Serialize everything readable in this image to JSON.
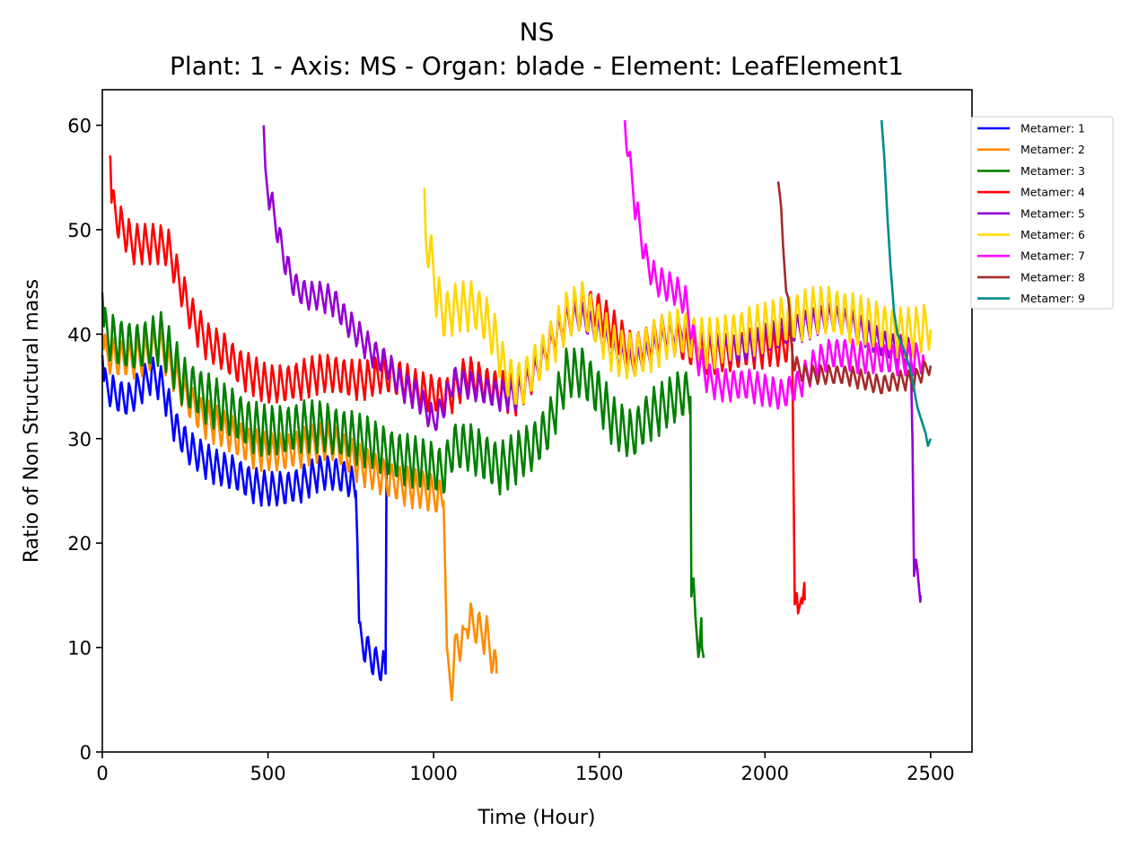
{
  "chart_data": {
    "type": "line",
    "title": "NS",
    "subtitle": "Plant: 1 - Axis: MS - Organ: blade - Element: LeafElement1",
    "xlabel": "Time (Hour)",
    "ylabel": "Ratio of Non Structural mass",
    "xlim": [
      0,
      2625
    ],
    "ylim": [
      0,
      63.4
    ],
    "xticks": [
      0,
      500,
      1000,
      1500,
      2000,
      2500
    ],
    "yticks": [
      0,
      10,
      20,
      30,
      40,
      50,
      60
    ],
    "grid": false,
    "legend_position": "outside-right-top",
    "series": [
      {
        "name": "Metamer: 1",
        "color": "#0000ff",
        "amp": 1.8,
        "points": [
          [
            0,
            38
          ],
          [
            5,
            35
          ],
          [
            40,
            34
          ],
          [
            80,
            33.5
          ],
          [
            120,
            35
          ],
          [
            150,
            36
          ],
          [
            180,
            35
          ],
          [
            220,
            31
          ],
          [
            260,
            29
          ],
          [
            300,
            28
          ],
          [
            350,
            27
          ],
          [
            400,
            26.5
          ],
          [
            450,
            25.5
          ],
          [
            500,
            25
          ],
          [
            550,
            25
          ],
          [
            600,
            25.5
          ],
          [
            650,
            26.5
          ],
          [
            700,
            26.5
          ],
          [
            740,
            26
          ],
          [
            765,
            25
          ],
          [
            770,
            20
          ],
          [
            775,
            11
          ],
          [
            790,
            10
          ],
          [
            820,
            8.5
          ],
          [
            845,
            8
          ],
          [
            855,
            7.5
          ],
          [
            858,
            28
          ]
        ]
      },
      {
        "name": "Metamer: 2",
        "color": "#ff8c00",
        "amp": 2,
        "points": [
          [
            0,
            40
          ],
          [
            5,
            38
          ],
          [
            40,
            37.5
          ],
          [
            90,
            37.5
          ],
          [
            140,
            38
          ],
          [
            170,
            39
          ],
          [
            200,
            37
          ],
          [
            250,
            34
          ],
          [
            300,
            32
          ],
          [
            350,
            31
          ],
          [
            400,
            30
          ],
          [
            450,
            29
          ],
          [
            500,
            28.5
          ],
          [
            550,
            28.5
          ],
          [
            600,
            29
          ],
          [
            650,
            29.5
          ],
          [
            700,
            29.5
          ],
          [
            750,
            28
          ],
          [
            800,
            27
          ],
          [
            850,
            26
          ],
          [
            900,
            25.5
          ],
          [
            950,
            25
          ],
          [
            1000,
            24.5
          ],
          [
            1030,
            24
          ],
          [
            1035,
            17
          ],
          [
            1040,
            8
          ],
          [
            1055,
            6.5
          ],
          [
            1070,
            10.5
          ],
          [
            1090,
            10
          ],
          [
            1100,
            12.5
          ],
          [
            1120,
            12
          ],
          [
            1140,
            11.5
          ],
          [
            1160,
            11
          ],
          [
            1180,
            8.5
          ],
          [
            1190,
            7.5
          ]
        ]
      },
      {
        "name": "Metamer: 3",
        "color": "#008000",
        "amp": 2.6,
        "points": [
          [
            0,
            44
          ],
          [
            5,
            40
          ],
          [
            40,
            39
          ],
          [
            100,
            38.5
          ],
          [
            150,
            39
          ],
          [
            180,
            39.5
          ],
          [
            210,
            37.5
          ],
          [
            250,
            35
          ],
          [
            300,
            34
          ],
          [
            350,
            33
          ],
          [
            400,
            32
          ],
          [
            450,
            31
          ],
          [
            500,
            30.5
          ],
          [
            550,
            30.5
          ],
          [
            600,
            31
          ],
          [
            650,
            31
          ],
          [
            700,
            30.5
          ],
          [
            750,
            30
          ],
          [
            800,
            29.5
          ],
          [
            850,
            28.5
          ],
          [
            900,
            28
          ],
          [
            950,
            27.5
          ],
          [
            1000,
            27
          ],
          [
            1030,
            26.5
          ],
          [
            1060,
            29
          ],
          [
            1100,
            29
          ],
          [
            1150,
            28
          ],
          [
            1200,
            27
          ],
          [
            1250,
            28
          ],
          [
            1300,
            29
          ],
          [
            1350,
            31
          ],
          [
            1400,
            36
          ],
          [
            1450,
            36
          ],
          [
            1500,
            34
          ],
          [
            1550,
            31
          ],
          [
            1600,
            30
          ],
          [
            1650,
            32
          ],
          [
            1700,
            33
          ],
          [
            1750,
            34
          ],
          [
            1775,
            34
          ],
          [
            1778,
            16
          ],
          [
            1790,
            12
          ],
          [
            1810,
            10
          ],
          [
            1815,
            9
          ]
        ]
      },
      {
        "name": "Metamer: 4",
        "color": "#ff0000",
        "amp": 2,
        "points": [
          [
            20,
            57
          ],
          [
            24,
            57
          ],
          [
            28,
            52.5
          ],
          [
            50,
            50.5
          ],
          [
            90,
            48.5
          ],
          [
            120,
            48.5
          ],
          [
            170,
            48.5
          ],
          [
            200,
            48
          ],
          [
            230,
            45
          ],
          [
            270,
            41.5
          ],
          [
            320,
            39
          ],
          [
            370,
            38
          ],
          [
            420,
            36.5
          ],
          [
            450,
            36
          ],
          [
            500,
            35
          ],
          [
            550,
            35
          ],
          [
            600,
            35.5
          ],
          [
            650,
            36
          ],
          [
            700,
            36
          ],
          [
            750,
            35.5
          ],
          [
            800,
            35.5
          ],
          [
            850,
            36
          ],
          [
            900,
            35.5
          ],
          [
            950,
            34.5
          ],
          [
            1000,
            34
          ],
          [
            1050,
            34
          ],
          [
            1100,
            36
          ],
          [
            1150,
            35
          ],
          [
            1200,
            34.5
          ],
          [
            1250,
            34
          ],
          [
            1300,
            36
          ],
          [
            1350,
            39
          ],
          [
            1400,
            41
          ],
          [
            1450,
            42.5
          ],
          [
            1500,
            42
          ],
          [
            1550,
            40
          ],
          [
            1600,
            38
          ],
          [
            1650,
            39
          ],
          [
            1700,
            40
          ],
          [
            1750,
            39
          ],
          [
            1800,
            38
          ],
          [
            1850,
            38
          ],
          [
            1900,
            38
          ],
          [
            1950,
            38.5
          ],
          [
            2000,
            38.5
          ],
          [
            2050,
            38.5
          ],
          [
            2082,
            39
          ],
          [
            2085,
            30
          ],
          [
            2090,
            15
          ],
          [
            2100,
            12
          ],
          [
            2110,
            16
          ],
          [
            2120,
            14.5
          ]
        ]
      },
      {
        "name": "Metamer: 5",
        "color": "#9400d3",
        "amp": 1.5,
        "points": [
          [
            487,
            60
          ],
          [
            492,
            55
          ],
          [
            520,
            51
          ],
          [
            550,
            47
          ],
          [
            580,
            44.5
          ],
          [
            620,
            43.5
          ],
          [
            660,
            43.5
          ],
          [
            700,
            43
          ],
          [
            740,
            41
          ],
          [
            780,
            39.5
          ],
          [
            820,
            38
          ],
          [
            860,
            37
          ],
          [
            900,
            35
          ],
          [
            950,
            34
          ],
          [
            1000,
            31.5
          ],
          [
            1030,
            33
          ],
          [
            1060,
            35.5
          ],
          [
            1100,
            35
          ],
          [
            1150,
            34.5
          ],
          [
            1200,
            34
          ],
          [
            1250,
            34
          ],
          [
            1300,
            36
          ],
          [
            1350,
            38.5
          ],
          [
            1400,
            41.5
          ],
          [
            1450,
            41.5
          ],
          [
            1500,
            40
          ],
          [
            1550,
            38
          ],
          [
            1600,
            37
          ],
          [
            1650,
            38
          ],
          [
            1700,
            39.5
          ],
          [
            1750,
            40.5
          ],
          [
            1800,
            39
          ],
          [
            1850,
            38.5
          ],
          [
            1900,
            38.5
          ],
          [
            1950,
            38.5
          ],
          [
            2000,
            39.5
          ],
          [
            2050,
            40
          ],
          [
            2100,
            40.5
          ],
          [
            2150,
            41
          ],
          [
            2200,
            41.5
          ],
          [
            2250,
            41
          ],
          [
            2300,
            40
          ],
          [
            2350,
            39
          ],
          [
            2400,
            38.5
          ],
          [
            2440,
            38
          ],
          [
            2445,
            30
          ],
          [
            2450,
            17.5
          ],
          [
            2460,
            16.5
          ],
          [
            2470,
            15
          ]
        ]
      },
      {
        "name": "Metamer: 6",
        "color": "#ffd700",
        "amp": 2.5,
        "points": [
          [
            972,
            54
          ],
          [
            976,
            49
          ],
          [
            990,
            47.5
          ],
          [
            1010,
            43.5
          ],
          [
            1030,
            41.5
          ],
          [
            1050,
            42
          ],
          [
            1080,
            42.5
          ],
          [
            1120,
            42.5
          ],
          [
            1160,
            41
          ],
          [
            1190,
            39
          ],
          [
            1210,
            36.5
          ],
          [
            1240,
            35
          ],
          [
            1270,
            35
          ],
          [
            1300,
            36.5
          ],
          [
            1350,
            38.5
          ],
          [
            1400,
            41.5
          ],
          [
            1450,
            42.5
          ],
          [
            1500,
            40.5
          ],
          [
            1550,
            38
          ],
          [
            1600,
            37.5
          ],
          [
            1650,
            38.5
          ],
          [
            1700,
            39.5
          ],
          [
            1750,
            40
          ],
          [
            1800,
            39
          ],
          [
            1850,
            39
          ],
          [
            1900,
            39.5
          ],
          [
            1950,
            40
          ],
          [
            2000,
            40.5
          ],
          [
            2050,
            41
          ],
          [
            2100,
            41.5
          ],
          [
            2150,
            42
          ],
          [
            2200,
            42
          ],
          [
            2250,
            41.5
          ],
          [
            2300,
            41
          ],
          [
            2350,
            40.5
          ],
          [
            2400,
            40
          ],
          [
            2450,
            40
          ],
          [
            2500,
            40.5
          ]
        ]
      },
      {
        "name": "Metamer: 7",
        "color": "#ff00ff",
        "amp": 1.6,
        "points": [
          [
            1577,
            60.5
          ],
          [
            1590,
            56.5
          ],
          [
            1610,
            52
          ],
          [
            1640,
            47
          ],
          [
            1670,
            45
          ],
          [
            1700,
            44.5
          ],
          [
            1730,
            44
          ],
          [
            1760,
            43
          ],
          [
            1780,
            40
          ],
          [
            1800,
            37.5
          ],
          [
            1830,
            35.5
          ],
          [
            1860,
            35
          ],
          [
            1900,
            35
          ],
          [
            1950,
            35
          ],
          [
            2000,
            34.5
          ],
          [
            2050,
            34
          ],
          [
            2100,
            35
          ],
          [
            2150,
            37
          ],
          [
            2200,
            38
          ],
          [
            2250,
            38
          ],
          [
            2300,
            37.5
          ],
          [
            2350,
            37.5
          ],
          [
            2400,
            37.5
          ],
          [
            2450,
            37.5
          ],
          [
            2480,
            37.5
          ]
        ]
      },
      {
        "name": "Metamer: 8",
        "color": "#a52a2a",
        "amp": 1,
        "points": [
          [
            2040,
            55.5
          ],
          [
            2055,
            48
          ],
          [
            2070,
            43
          ],
          [
            2080,
            39
          ],
          [
            2090,
            37
          ],
          [
            2120,
            36
          ],
          [
            2150,
            36
          ],
          [
            2200,
            36
          ],
          [
            2250,
            36
          ],
          [
            2300,
            35.5
          ],
          [
            2350,
            35
          ],
          [
            2400,
            35.5
          ],
          [
            2450,
            35.5
          ],
          [
            2500,
            37
          ]
        ]
      },
      {
        "name": "Metamer: 9",
        "color": "#008b8b",
        "amp": 0,
        "points": [
          [
            2352,
            60.5
          ],
          [
            2360,
            57
          ],
          [
            2370,
            51
          ],
          [
            2380,
            46
          ],
          [
            2390,
            42
          ],
          [
            2400,
            40
          ],
          [
            2420,
            38.5
          ],
          [
            2440,
            36.5
          ],
          [
            2460,
            33
          ],
          [
            2475,
            31.5
          ],
          [
            2485,
            30.5
          ],
          [
            2492,
            29.3
          ],
          [
            2500,
            30
          ]
        ]
      }
    ]
  }
}
